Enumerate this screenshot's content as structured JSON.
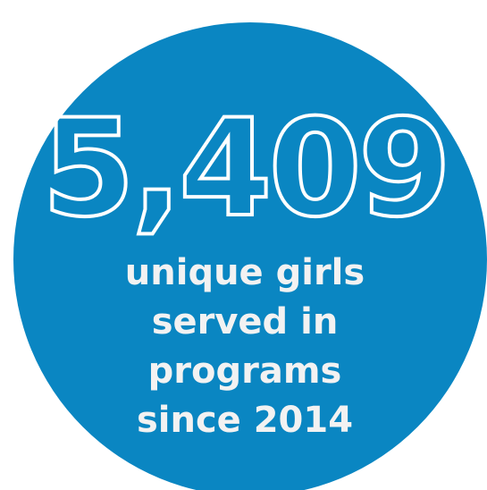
{
  "stat": {
    "value": "5,409",
    "caption_lines": [
      "unique girls",
      "served in",
      "programs",
      "since 2014"
    ]
  }
}
